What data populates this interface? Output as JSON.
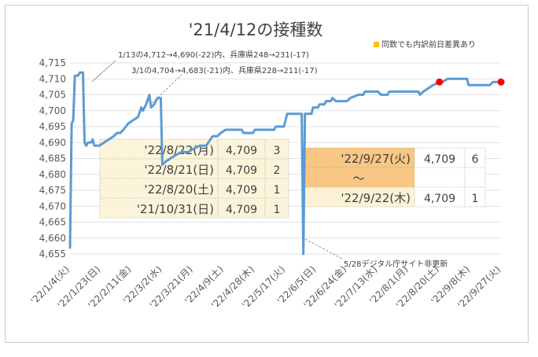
{
  "chart_data": {
    "type": "line",
    "title": "'21/4/12の接種数",
    "legend_note": "同数でも内訳前日差異あり",
    "legend_note_color": "#ffc000",
    "line_color": "#5b9bd5",
    "marker_color": "#ff0000",
    "ylim": [
      4655,
      4715
    ],
    "y_ticks": [
      "4,655",
      "4,660",
      "4,665",
      "4,670",
      "4,675",
      "4,680",
      "4,685",
      "4,690",
      "4,695",
      "4,700",
      "4,705",
      "4,710",
      "4,715"
    ],
    "x_tick_labels": [
      "'22/1/4(火)",
      "'22/1/23(日)",
      "'22/2/11(金)",
      "'22/3/2(水)",
      "'22/3/21(月)",
      "'22/4/9(土)",
      "'22/4/28(木)",
      "'22/5/17(火)",
      "'22/6/5(日)",
      "'22/6/24(金)",
      "'22/7/13(水)",
      "'22/8/1(月)",
      "'22/8/20(土)",
      "'22/9/8(木)",
      "'22/9/27(火)"
    ],
    "x_start_date": "2022-01-04",
    "series": [
      {
        "values": [
          [
            "2022-01-04",
            4657
          ],
          [
            "2022-01-05",
            4696
          ],
          [
            "2022-01-06",
            4697
          ],
          [
            "2022-01-07",
            4711
          ],
          [
            "2022-01-09",
            4711
          ],
          [
            "2022-01-10",
            4712
          ],
          [
            "2022-01-11",
            4712
          ],
          [
            "2022-01-12",
            4712
          ],
          [
            "2022-01-13",
            4690
          ],
          [
            "2022-01-14",
            4689
          ],
          [
            "2022-01-15",
            4690
          ],
          [
            "2022-01-17",
            4690
          ],
          [
            "2022-01-18",
            4691
          ],
          [
            "2022-01-19",
            4689
          ],
          [
            "2022-01-22",
            4689
          ],
          [
            "2022-01-25",
            4690
          ],
          [
            "2022-01-28",
            4691
          ],
          [
            "2022-01-31",
            4692
          ],
          [
            "2022-02-02",
            4693
          ],
          [
            "2022-02-04",
            4693
          ],
          [
            "2022-02-06",
            4694
          ],
          [
            "2022-02-09",
            4696
          ],
          [
            "2022-02-12",
            4697
          ],
          [
            "2022-02-15",
            4698
          ],
          [
            "2022-02-17",
            4701
          ],
          [
            "2022-02-18",
            4700
          ],
          [
            "2022-02-20",
            4702
          ],
          [
            "2022-02-22",
            4705
          ],
          [
            "2022-02-23",
            4701
          ],
          [
            "2022-02-25",
            4702
          ],
          [
            "2022-02-27",
            4704
          ],
          [
            "2022-03-01",
            4704
          ],
          [
            "2022-03-02",
            4683
          ],
          [
            "2022-03-04",
            4684
          ],
          [
            "2022-03-07",
            4685
          ],
          [
            "2022-03-10",
            4686
          ],
          [
            "2022-03-14",
            4687
          ],
          [
            "2022-03-18",
            4687
          ],
          [
            "2022-03-21",
            4688
          ],
          [
            "2022-03-25",
            4689
          ],
          [
            "2022-03-29",
            4689
          ],
          [
            "2022-04-02",
            4692
          ],
          [
            "2022-04-05",
            4692
          ],
          [
            "2022-04-07",
            4693
          ],
          [
            "2022-04-10",
            4694
          ],
          [
            "2022-04-15",
            4694
          ],
          [
            "2022-04-20",
            4694
          ],
          [
            "2022-04-21",
            4693
          ],
          [
            "2022-04-27",
            4693
          ],
          [
            "2022-04-28",
            4694
          ],
          [
            "2022-05-10",
            4694
          ],
          [
            "2022-05-11",
            4695
          ],
          [
            "2022-05-16",
            4695
          ],
          [
            "2022-05-17",
            4697
          ],
          [
            "2022-05-18",
            4699
          ],
          [
            "2022-05-27",
            4699
          ],
          [
            "2022-05-28",
            4655
          ],
          [
            "2022-05-29",
            4699
          ],
          [
            "2022-06-02",
            4699
          ],
          [
            "2022-06-03",
            4701
          ],
          [
            "2022-06-06",
            4701
          ],
          [
            "2022-06-07",
            4702
          ],
          [
            "2022-06-10",
            4702
          ],
          [
            "2022-06-11",
            4703
          ],
          [
            "2022-06-14",
            4703
          ],
          [
            "2022-06-15",
            4704
          ],
          [
            "2022-06-17",
            4703
          ],
          [
            "2022-06-20",
            4703
          ],
          [
            "2022-06-24",
            4703
          ],
          [
            "2022-06-26",
            4704
          ],
          [
            "2022-07-01",
            4705
          ],
          [
            "2022-07-04",
            4705
          ],
          [
            "2022-07-05",
            4706
          ],
          [
            "2022-07-13",
            4706
          ],
          [
            "2022-07-15",
            4705
          ],
          [
            "2022-07-19",
            4705
          ],
          [
            "2022-07-20",
            4706
          ],
          [
            "2022-07-30",
            4706
          ],
          [
            "2022-08-01",
            4706
          ],
          [
            "2022-08-07",
            4706
          ],
          [
            "2022-08-08",
            4705
          ],
          [
            "2022-08-10",
            4706
          ],
          [
            "2022-08-13",
            4707
          ],
          [
            "2022-08-16",
            4708
          ],
          [
            "2022-08-20",
            4709
          ],
          [
            "2022-08-21",
            4709
          ],
          [
            "2022-08-22",
            4709
          ],
          [
            "2022-08-25",
            4710
          ],
          [
            "2022-09-06",
            4710
          ],
          [
            "2022-09-07",
            4708
          ],
          [
            "2022-09-15",
            4708
          ],
          [
            "2022-09-16",
            4708
          ],
          [
            "2022-09-20",
            4708
          ],
          [
            "2022-09-22",
            4709
          ],
          [
            "2022-09-27",
            4709
          ]
        ]
      }
    ],
    "highlight_points": [
      [
        "2022-08-20",
        4709
      ],
      [
        "2022-09-27",
        4709
      ]
    ],
    "annotations": [
      {
        "text": "1/13の4,712→4,690(-22)内、兵庫県248→231(-17)"
      },
      {
        "text": "3/1の4,704→4,683(-21)内、兵庫県228→211(-17)"
      },
      {
        "text": "5/28デジタル庁サイト非更新"
      }
    ],
    "table_left": [
      {
        "date": "'22/8/22(月)",
        "value": "4,709",
        "count": "3"
      },
      {
        "date": "'22/8/21(日)",
        "value": "4,709",
        "count": "2"
      },
      {
        "date": "'22/8/20(土)",
        "value": "4,709",
        "count": "1"
      },
      {
        "date": "'21/10/31(日)",
        "value": "4,709",
        "count": "1"
      }
    ],
    "table_right": {
      "from_date": "'22/9/27(火)",
      "from_value": "4,709",
      "from_count": "6",
      "tilde": "～",
      "to_date": "'22/9/22(木)",
      "to_value": "4,709",
      "to_count": "1"
    }
  }
}
